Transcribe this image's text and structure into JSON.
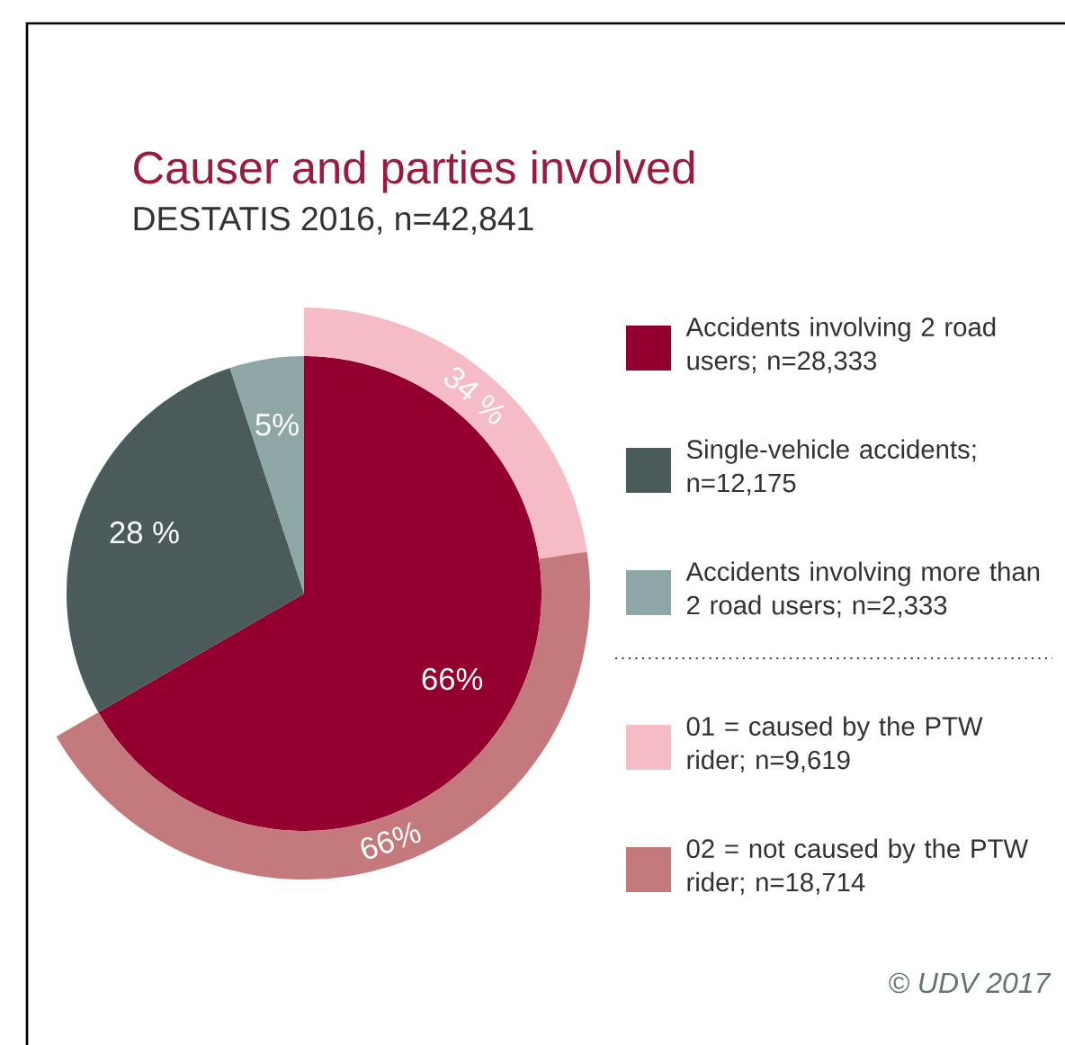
{
  "chart_data": [
    {
      "type": "pie",
      "title": "Causer and parties involved",
      "subtitle": "DESTATIS 2016, n=42,841",
      "categories": [
        "Accidents involving 2 road users; n=28,333",
        "Single-vehicle accidents; n=12,175",
        "Accidents involving more than 2 road users; n=2,333"
      ],
      "values": [
        66,
        28,
        5
      ],
      "colors": [
        "#930030",
        "#4b5a5a",
        "#8fa6a6"
      ],
      "value_labels": [
        "66%",
        "28 %",
        "5%"
      ],
      "legend": "right",
      "annotations": [
        "© UDV 2017"
      ]
    },
    {
      "type": "donut",
      "categories": [
        "01 = caused by the PTW rider; n=9,619",
        "02 = not caused by the PTW rider; n=18,714"
      ],
      "values": [
        34,
        66
      ],
      "colors": [
        "#f5bcc6",
        "#c47a7c"
      ],
      "value_labels": [
        "34 %",
        "66%"
      ],
      "legend": "right"
    }
  ]
}
